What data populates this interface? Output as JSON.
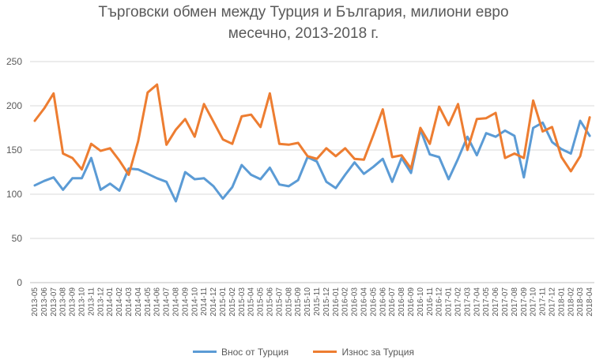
{
  "chart_data": {
    "type": "line",
    "title_line1": "Търговски обмен между Турция и България, милиони евро",
    "title_line2": "месечно, 2013-2018 г.",
    "xlabel": "",
    "ylabel": "",
    "ylim": [
      0,
      250
    ],
    "yticks": [
      "0",
      "50",
      "100",
      "150",
      "200",
      "250"
    ],
    "grid": true,
    "legend_position": "bottom",
    "categories": [
      "2013-05",
      "2013-06",
      "2013-07",
      "2013-08",
      "2013-09",
      "2013-10",
      "2013-11",
      "2013-12",
      "2014-01",
      "2014-02",
      "2014-03",
      "2014-04",
      "2014-05",
      "2014-06",
      "2014-07",
      "2014-08",
      "2014-09",
      "2014-10",
      "2014-11",
      "2014-12",
      "2015-01",
      "2015-02",
      "2015-03",
      "2015-04",
      "2015-05",
      "2015-06",
      "2015-07",
      "2015-08",
      "2015-09",
      "2015-10",
      "2015-11",
      "2015-12",
      "2016-01",
      "2016-02",
      "2016-03",
      "2016-04",
      "2016-05",
      "2016-06",
      "2016-07",
      "2016-08",
      "2016-09",
      "2016-10",
      "2016-11",
      "2016-12",
      "2017-01",
      "2017-02",
      "2017-03",
      "2017-04",
      "2017-05",
      "2017-06",
      "2017-07",
      "2017-08",
      "2017-09",
      "2017-10",
      "2017-11",
      "2017-12",
      "2018-01",
      "2018-02",
      "2018-03",
      "2018-04"
    ],
    "series": [
      {
        "name": "Внос от Турция",
        "color": "#5b9bd5",
        "values": [
          110,
          115,
          119,
          105,
          118,
          118,
          141,
          105,
          112,
          104,
          129,
          128,
          123,
          118,
          114,
          92,
          125,
          117,
          118,
          109,
          95,
          108,
          133,
          122,
          117,
          130,
          111,
          109,
          116,
          142,
          137,
          114,
          107,
          122,
          136,
          123,
          131,
          140,
          114,
          141,
          124,
          173,
          145,
          142,
          117,
          140,
          165,
          144,
          169,
          165,
          172,
          166,
          119,
          175,
          181,
          159,
          151,
          146,
          183,
          166
        ]
      },
      {
        "name": "Износ за Турция",
        "color": "#ed7d31",
        "values": [
          183,
          197,
          214,
          146,
          141,
          128,
          157,
          149,
          152,
          138,
          122,
          160,
          215,
          224,
          156,
          173,
          185,
          165,
          202,
          182,
          162,
          157,
          188,
          190,
          176,
          214,
          157,
          156,
          158,
          143,
          140,
          152,
          143,
          152,
          140,
          139,
          167,
          196,
          142,
          144,
          129,
          175,
          157,
          199,
          178,
          202,
          150,
          185,
          186,
          192,
          141,
          146,
          141,
          206,
          171,
          176,
          142,
          126,
          143,
          187
        ]
      }
    ]
  }
}
